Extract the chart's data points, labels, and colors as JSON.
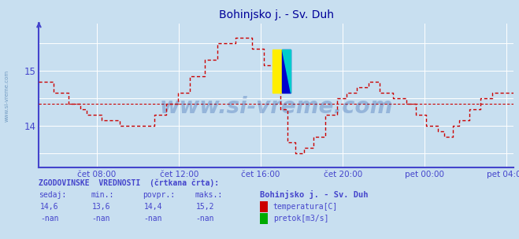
{
  "title": "Bohinjsko j. - Sv. Duh",
  "title_color": "#000099",
  "bg_color": "#c8dff0",
  "plot_bg_color": "#c8dff0",
  "line_color": "#cc0000",
  "grid_color": "#ffffff",
  "axis_color": "#4444cc",
  "tick_label_color": "#4444cc",
  "text_color": "#4444cc",
  "watermark": "www.si-vreme.com",
  "watermark_color": "#2255aa",
  "watermark_alpha": 0.3,
  "ylim": [
    13.25,
    15.85
  ],
  "yticks": [
    14,
    15
  ],
  "avg_value": 14.4,
  "xlabel_ticks": [
    "čet 08:00",
    "čet 12:00",
    "čet 16:00",
    "čet 20:00",
    "pet 00:00",
    "pet 04:00"
  ],
  "legend_title": "ZGODOVINSKE  VREDNOSTI  (črtkana črta):",
  "col_headers": [
    "sedaj:",
    "min.:",
    "povpr.:",
    "maks.:"
  ],
  "row1_values": [
    "14,6",
    "13,6",
    "14,4",
    "15,2"
  ],
  "row2_values": [
    "-nan",
    "-nan",
    "-nan",
    "-nan"
  ],
  "station_name": "Bohinjsko j. - Sv. Duh",
  "legend_item1": "temperatura[C]",
  "legend_item2": "pretok[m3/s]",
  "legend_color1": "#cc0000",
  "legend_color2": "#00aa00",
  "figsize": [
    6.59,
    3.04
  ],
  "dpi": 100
}
